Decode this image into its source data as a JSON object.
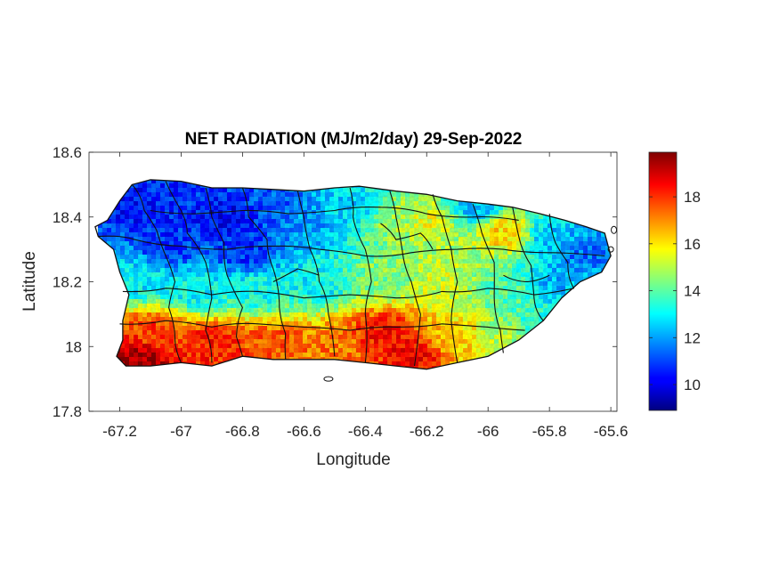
{
  "chart_data": {
    "type": "heatmap",
    "title": "NET RADIATION (MJ/m2/day) 29-Sep-2022",
    "xlabel": "Longitude",
    "ylabel": "Latitude",
    "xlim": [
      -67.3,
      -65.58
    ],
    "ylim": [
      17.8,
      18.6
    ],
    "x_ticks": [
      -67.2,
      -67,
      -66.8,
      -66.6,
      -66.4,
      -66.2,
      -66,
      -65.8,
      -65.6
    ],
    "x_tick_labels": [
      "-67.2",
      "-67",
      "-66.8",
      "-66.6",
      "-66.4",
      "-66.2",
      "-66",
      "-65.8",
      "-65.6"
    ],
    "y_ticks": [
      17.8,
      18,
      18.2,
      18.4,
      18.6
    ],
    "y_tick_labels": [
      "17.8",
      "18",
      "18.2",
      "18.4",
      "18.6"
    ],
    "colorbar": {
      "colormap": "jet",
      "clim": [
        8.9,
        19.9
      ],
      "ticks": [
        10,
        12,
        14,
        16,
        18
      ],
      "tick_labels": [
        "10",
        "12",
        "14",
        "16",
        "18"
      ]
    },
    "grid": false,
    "region": "Puerto Rico municipalities",
    "island_outline": [
      [
        -67.28,
        18.37
      ],
      [
        -67.24,
        18.39
      ],
      [
        -67.2,
        18.45
      ],
      [
        -67.16,
        18.5
      ],
      [
        -67.1,
        18.515
      ],
      [
        -67.0,
        18.51
      ],
      [
        -66.9,
        18.49
      ],
      [
        -66.8,
        18.49
      ],
      [
        -66.7,
        18.485
      ],
      [
        -66.6,
        18.48
      ],
      [
        -66.5,
        18.49
      ],
      [
        -66.42,
        18.495
      ],
      [
        -66.3,
        18.48
      ],
      [
        -66.2,
        18.47
      ],
      [
        -66.1,
        18.45
      ],
      [
        -66.0,
        18.44
      ],
      [
        -65.92,
        18.43
      ],
      [
        -65.83,
        18.41
      ],
      [
        -65.75,
        18.39
      ],
      [
        -65.68,
        18.37
      ],
      [
        -65.62,
        18.35
      ],
      [
        -65.6,
        18.28
      ],
      [
        -65.63,
        18.23
      ],
      [
        -65.7,
        18.2
      ],
      [
        -65.76,
        18.15
      ],
      [
        -65.82,
        18.08
      ],
      [
        -65.9,
        18.02
      ],
      [
        -66.0,
        17.97
      ],
      [
        -66.1,
        17.95
      ],
      [
        -66.2,
        17.93
      ],
      [
        -66.3,
        17.94
      ],
      [
        -66.4,
        17.95
      ],
      [
        -66.5,
        17.96
      ],
      [
        -66.6,
        17.96
      ],
      [
        -66.7,
        17.96
      ],
      [
        -66.8,
        17.97
      ],
      [
        -66.9,
        17.94
      ],
      [
        -67.0,
        17.95
      ],
      [
        -67.1,
        17.94
      ],
      [
        -67.18,
        17.94
      ],
      [
        -67.21,
        17.97
      ],
      [
        -67.19,
        18.02
      ],
      [
        -67.19,
        18.08
      ],
      [
        -67.17,
        18.16
      ],
      [
        -67.2,
        18.23
      ],
      [
        -67.22,
        18.3
      ],
      [
        -67.27,
        18.34
      ]
    ],
    "value_field_anchors": [
      {
        "lon": -67.15,
        "lat": 18.44,
        "value": 10.5
      },
      {
        "lon": -67.05,
        "lat": 18.32,
        "value": 10.8
      },
      {
        "lon": -66.85,
        "lat": 18.4,
        "value": 10.3
      },
      {
        "lon": -66.8,
        "lat": 18.3,
        "value": 10.8
      },
      {
        "lon": -66.7,
        "lat": 18.44,
        "value": 11.2
      },
      {
        "lon": -66.6,
        "lat": 18.38,
        "value": 12.0
      },
      {
        "lon": -66.45,
        "lat": 18.44,
        "value": 12.6
      },
      {
        "lon": -66.3,
        "lat": 18.4,
        "value": 14.8
      },
      {
        "lon": -66.2,
        "lat": 18.4,
        "value": 15.5
      },
      {
        "lon": -66.05,
        "lat": 18.44,
        "value": 12.4
      },
      {
        "lon": -65.95,
        "lat": 18.36,
        "value": 16.2
      },
      {
        "lon": -65.8,
        "lat": 18.35,
        "value": 12.5
      },
      {
        "lon": -65.7,
        "lat": 18.3,
        "value": 11.5
      },
      {
        "lon": -65.78,
        "lat": 18.2,
        "value": 12.3
      },
      {
        "lon": -65.95,
        "lat": 18.18,
        "value": 14.0
      },
      {
        "lon": -66.15,
        "lat": 18.22,
        "value": 15.2
      },
      {
        "lon": -66.35,
        "lat": 18.22,
        "value": 14.5
      },
      {
        "lon": -66.55,
        "lat": 18.2,
        "value": 13.0
      },
      {
        "lon": -66.75,
        "lat": 18.18,
        "value": 13.2
      },
      {
        "lon": -66.95,
        "lat": 18.18,
        "value": 13.0
      },
      {
        "lon": -67.15,
        "lat": 18.22,
        "value": 12.8
      },
      {
        "lon": -67.1,
        "lat": 18.05,
        "value": 17.8
      },
      {
        "lon": -67.15,
        "lat": 17.97,
        "value": 19.5
      },
      {
        "lon": -66.9,
        "lat": 18.02,
        "value": 18.3
      },
      {
        "lon": -66.7,
        "lat": 18.02,
        "value": 17.6
      },
      {
        "lon": -66.5,
        "lat": 18.01,
        "value": 17.2
      },
      {
        "lon": -66.35,
        "lat": 18.05,
        "value": 18.4
      },
      {
        "lon": -66.25,
        "lat": 17.98,
        "value": 18.5
      },
      {
        "lon": -66.1,
        "lat": 18.03,
        "value": 16.2
      },
      {
        "lon": -65.95,
        "lat": 18.05,
        "value": 14.8
      },
      {
        "lon": -65.85,
        "lat": 18.08,
        "value": 13.5
      }
    ]
  }
}
